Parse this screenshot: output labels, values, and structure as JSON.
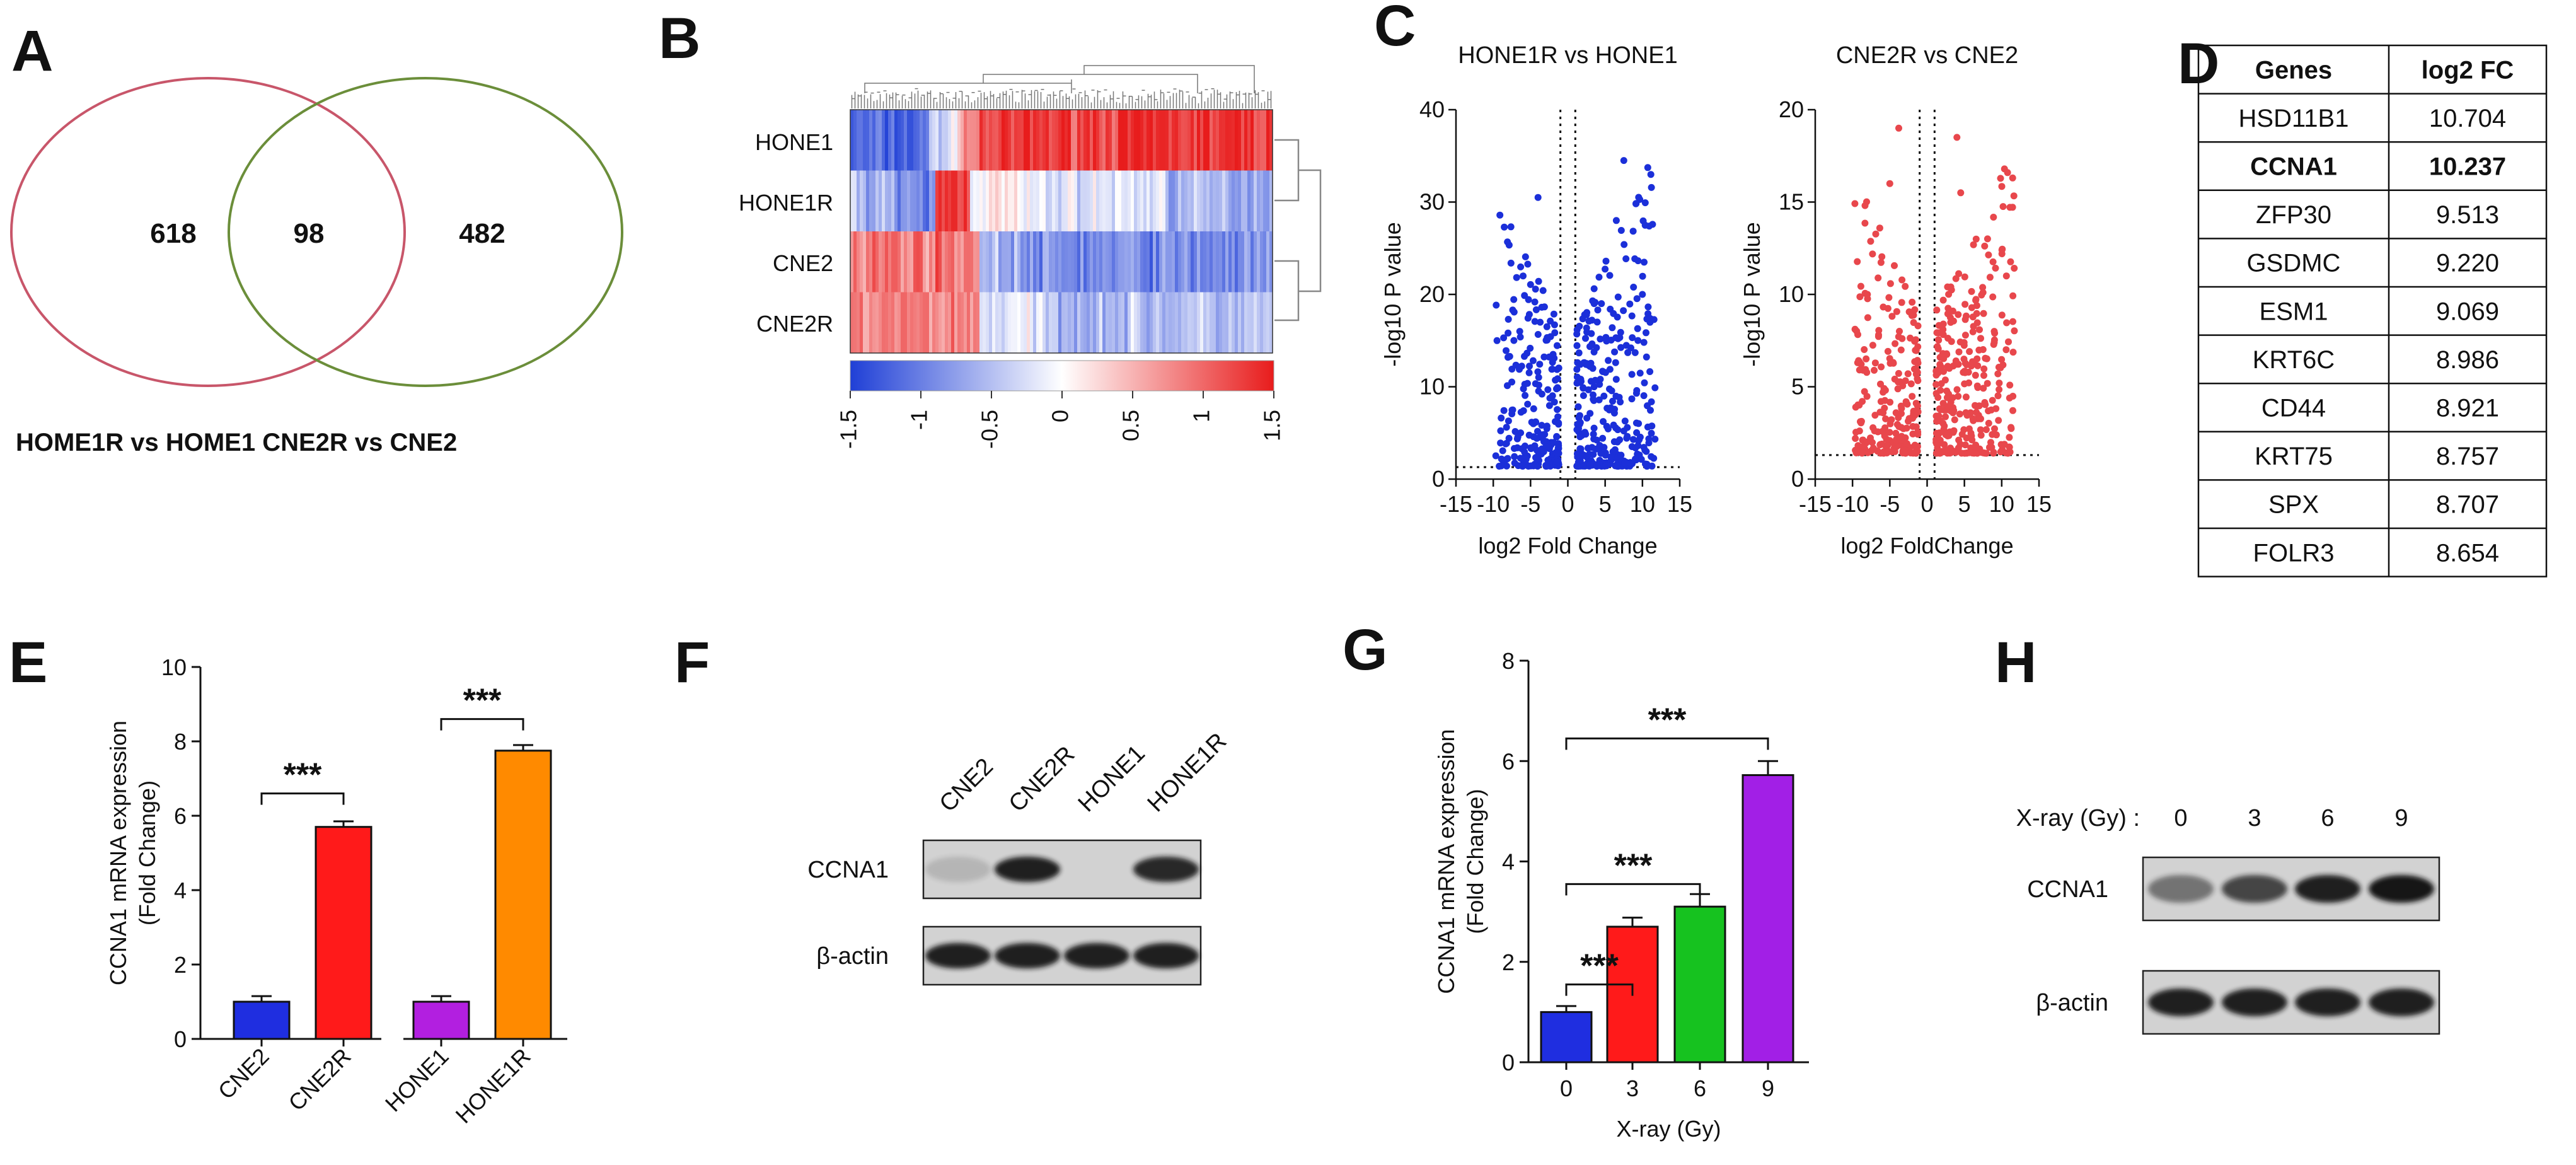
{
  "panel_labels": [
    "A",
    "B",
    "C",
    "D",
    "E",
    "F",
    "G",
    "H"
  ],
  "venn": {
    "left_count": "618",
    "overlap_count": "98",
    "right_count": "482",
    "caption": "HOME1R vs HOME1 CNE2R vs CNE2",
    "colors": {
      "left": "#c8566a",
      "right": "#6b8e3a",
      "overlap_text": "#d0181c"
    }
  },
  "heatmap": {
    "rows": [
      "HONE1",
      "HONE1R",
      "CNE2",
      "CNE2R"
    ],
    "colorbar_ticks": [
      "-1.5",
      "-1",
      "-0.5",
      "0",
      "0.5",
      "1",
      "1.5"
    ],
    "colors": {
      "low": "#1f3fd6",
      "mid": "#ffffff",
      "high": "#e81c1c"
    }
  },
  "volcano": [
    {
      "title": "HONE1R vs HONE1",
      "ylabel": "-log10 P value",
      "xlabel": "log2 Fold Change",
      "yticks": [
        "0",
        "10",
        "20",
        "30",
        "40"
      ],
      "xticks": [
        "-15",
        "-10",
        "-5",
        "0",
        "5",
        "10",
        "15"
      ],
      "color": "#1b2fd9"
    },
    {
      "title": "CNE2R vs CNE2",
      "ylabel": "-log10 P value",
      "xlabel": "log2 FoldChange",
      "yticks": [
        "0",
        "5",
        "10",
        "15",
        "20"
      ],
      "xticks": [
        "-15",
        "-10",
        "-5",
        "0",
        "5",
        "10",
        "15"
      ],
      "color": "#e8474c"
    }
  ],
  "gene_table": {
    "headers": [
      "Genes",
      "log2 FC"
    ],
    "rows": [
      {
        "gene": "HSD11B1",
        "fc": "10.704"
      },
      {
        "gene": "CCNA1",
        "fc": "10.237"
      },
      {
        "gene": "ZFP30",
        "fc": "9.513"
      },
      {
        "gene": "GSDMC",
        "fc": "9.220"
      },
      {
        "gene": "ESM1",
        "fc": "9.069"
      },
      {
        "gene": "KRT6C",
        "fc": "8.986"
      },
      {
        "gene": "CD44",
        "fc": "8.921"
      },
      {
        "gene": "KRT75",
        "fc": "8.757"
      },
      {
        "gene": "SPX",
        "fc": "8.707"
      },
      {
        "gene": "FOLR3",
        "fc": "8.654"
      }
    ],
    "highlight_row": 1,
    "highlight_color": "#d0181c"
  },
  "blot_f": {
    "lanes": [
      "CNE2",
      "CNE2R",
      "HONE1",
      "HONE1R"
    ],
    "rows": [
      "CCNA1",
      "β-actin"
    ]
  },
  "blot_h": {
    "header": "X-ray (Gy) :",
    "lanes": [
      "0",
      "3",
      "6",
      "9"
    ],
    "rows": [
      "CCNA1",
      "β-actin"
    ]
  },
  "significance": "***",
  "chart_data": [
    {
      "type": "bar",
      "panel": "E",
      "categories": [
        "CNE2",
        "CNE2R",
        "HONE1",
        "HONE1R"
      ],
      "values": [
        1.0,
        5.7,
        1.0,
        7.75
      ],
      "errors": [
        0.15,
        0.15,
        0.15,
        0.15
      ],
      "colors": [
        "#1f2ee0",
        "#ff1a1a",
        "#b21fe0",
        "#ff8a00"
      ],
      "ylabel": "CCNA1 mRNA expression",
      "ylabel2": "(Fold Change)",
      "xlabel": "",
      "ylim": [
        0,
        10
      ],
      "yticks": [
        "0",
        "2",
        "4",
        "6",
        "8",
        "10"
      ],
      "grid": false
    },
    {
      "type": "bar",
      "panel": "G",
      "categories": [
        "0",
        "3",
        "6",
        "9"
      ],
      "values": [
        1.0,
        2.7,
        3.1,
        5.72
      ],
      "errors": [
        0.12,
        0.18,
        0.25,
        0.28
      ],
      "colors": [
        "#1f2ee0",
        "#ff1a1a",
        "#16c21f",
        "#a21fe6"
      ],
      "ylabel": "CCNA1 mRNA expression",
      "ylabel2": "(Fold Change)",
      "xlabel": "X-ray (Gy)",
      "ylim": [
        0,
        8
      ],
      "yticks": [
        "0",
        "2",
        "4",
        "6",
        "8"
      ],
      "grid": false
    }
  ]
}
